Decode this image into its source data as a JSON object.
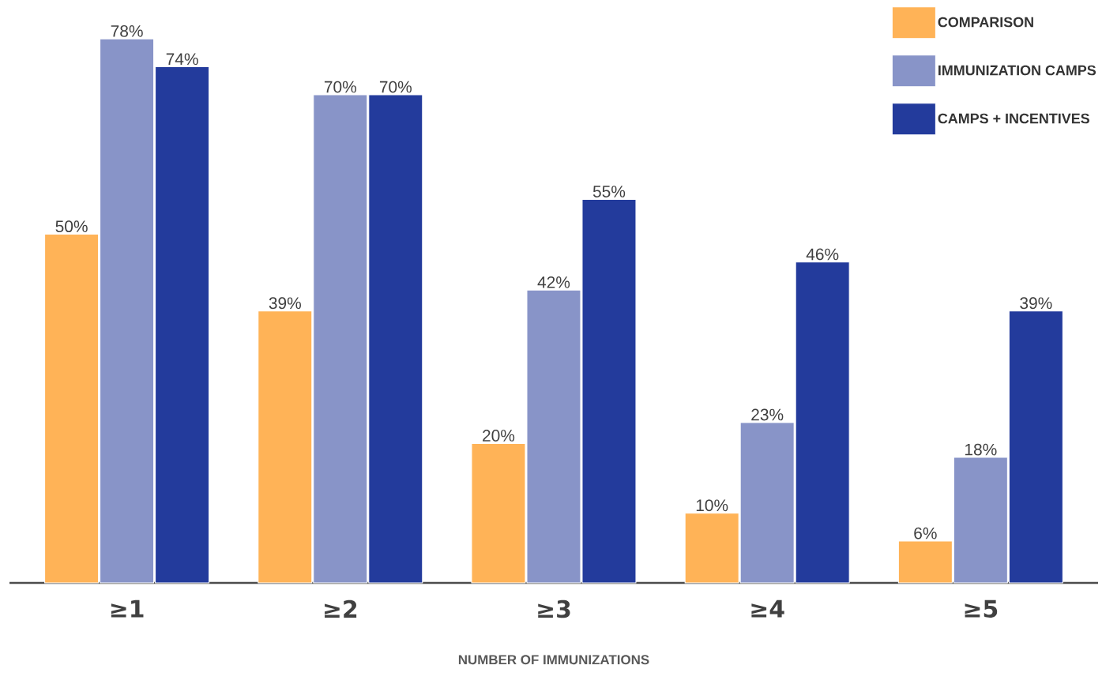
{
  "chart_data": {
    "type": "bar",
    "xlabel": "NUMBER OF IMMUNIZATIONS",
    "categories": [
      "≥1",
      "≥2",
      "≥3",
      "≥4",
      "≥5"
    ],
    "series": [
      {
        "name": "COMPARISON",
        "color": "#ffb357",
        "values": [
          50,
          39,
          20,
          10,
          6
        ],
        "value_labels": [
          "50%",
          "39%",
          "20%",
          "10%",
          "6%"
        ]
      },
      {
        "name": "IMMUNIZATION CAMPS",
        "color": "#8894c8",
        "values": [
          78,
          70,
          42,
          23,
          18
        ],
        "value_labels": [
          "78%",
          "70%",
          "42%",
          "23%",
          "18%"
        ]
      },
      {
        "name": "CAMPS + INCENTIVES",
        "color": "#233b9c",
        "values": [
          74,
          70,
          55,
          46,
          39
        ],
        "value_labels": [
          "74%",
          "70%",
          "55%",
          "46%",
          "39%"
        ]
      }
    ],
    "legend": "top right",
    "grid": false
  }
}
